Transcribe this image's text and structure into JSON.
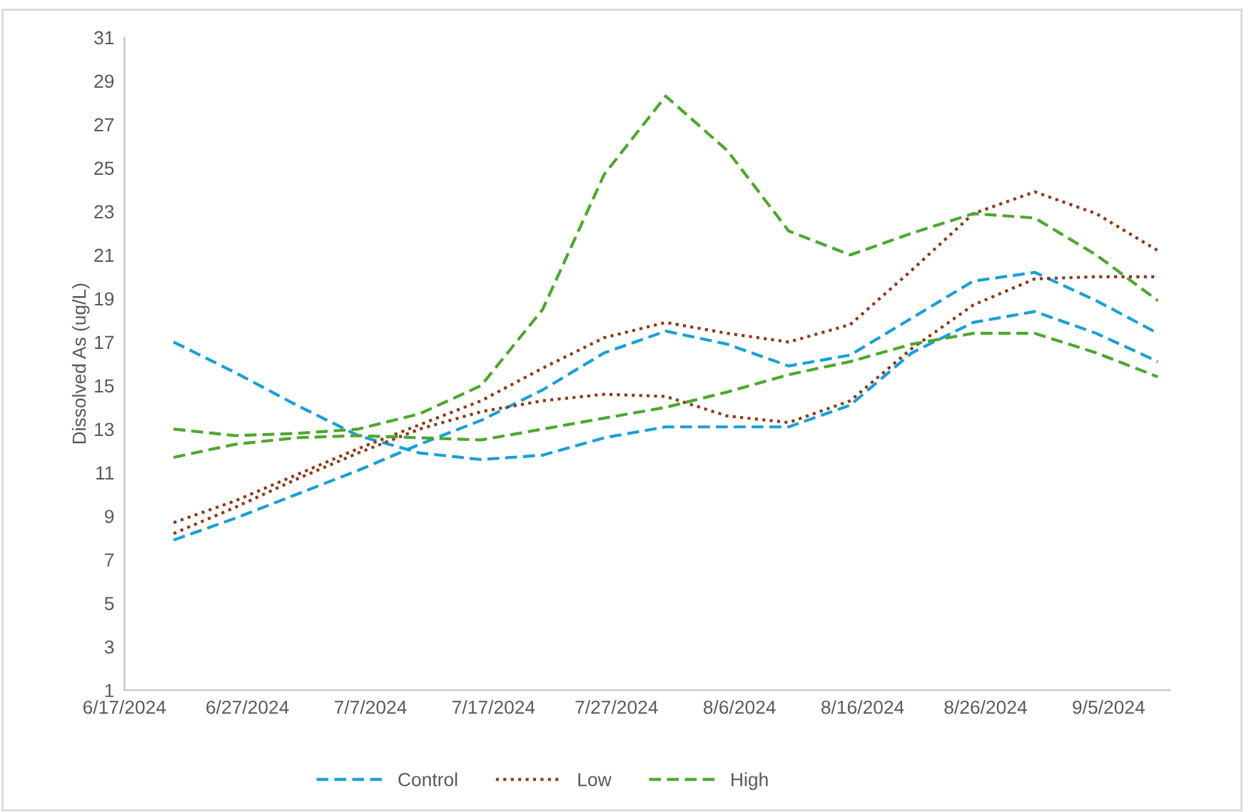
{
  "chart_data": {
    "type": "line",
    "ylabel": "Dissolved As (ug/L)",
    "x": [
      "2024-06-21",
      "2024-06-26",
      "2024-07-01",
      "2024-07-06",
      "2024-07-11",
      "2024-07-16",
      "2024-07-21",
      "2024-07-26",
      "2024-07-31",
      "2024-08-05",
      "2024-08-10",
      "2024-08-15",
      "2024-08-20",
      "2024-08-25",
      "2024-08-30",
      "2024-09-04",
      "2024-09-09"
    ],
    "series": [
      {
        "name": "Control",
        "color": "#1a9fd8",
        "line_style": "dashed",
        "values": [
          7.9,
          8.9,
          10.0,
          11.1,
          12.3,
          13.4,
          14.8,
          16.5,
          17.5,
          16.9,
          15.9,
          16.4,
          18.1,
          19.8,
          20.2,
          18.9,
          17.4
        ]
      },
      {
        "color": "#1a9fd8",
        "line_style": "dashed",
        "values": [
          17.0,
          15.6,
          14.1,
          12.7,
          11.9,
          11.6,
          11.8,
          12.6,
          13.1,
          13.1,
          13.1,
          14.1,
          16.5,
          17.9,
          18.4,
          17.4,
          16.1
        ]
      },
      {
        "name": "Low",
        "color": "#8b3a1a",
        "line_style": "dotted",
        "values": [
          8.7,
          9.7,
          10.9,
          12.1,
          13.2,
          14.3,
          15.8,
          17.2,
          17.9,
          17.4,
          17.0,
          17.8,
          20.3,
          22.9,
          23.9,
          22.9,
          21.2
        ]
      },
      {
        "color": "#8b3a1a",
        "line_style": "dotted",
        "values": [
          8.2,
          9.4,
          10.7,
          11.9,
          13.0,
          13.8,
          14.3,
          14.6,
          14.5,
          13.6,
          13.3,
          14.3,
          16.7,
          18.7,
          19.9,
          20.0,
          20.0
        ]
      },
      {
        "name": "High",
        "color": "#4ea72e",
        "line_style": "dashed",
        "values": [
          13.0,
          12.7,
          12.8,
          13.0,
          13.7,
          15.0,
          18.5,
          24.7,
          28.3,
          25.8,
          22.1,
          21.0,
          22.0,
          22.9,
          22.7,
          21.0,
          18.9
        ]
      },
      {
        "color": "#4ea72e",
        "line_style": "dashed",
        "values": [
          11.7,
          12.3,
          12.6,
          12.7,
          12.6,
          12.5,
          13.0,
          13.5,
          14.0,
          14.7,
          15.5,
          16.1,
          16.9,
          17.4,
          17.4,
          16.5,
          15.4
        ]
      }
    ],
    "xlim": [
      "2024-06-17",
      "2024-09-10"
    ],
    "xticks": [
      {
        "value": "2024-06-17",
        "label": "6/17/2024"
      },
      {
        "value": "2024-06-27",
        "label": "6/27/2024"
      },
      {
        "value": "2024-07-07",
        "label": "7/7/2024"
      },
      {
        "value": "2024-07-17",
        "label": "7/17/2024"
      },
      {
        "value": "2024-07-27",
        "label": "7/27/2024"
      },
      {
        "value": "2024-08-06",
        "label": "8/6/2024"
      },
      {
        "value": "2024-08-16",
        "label": "8/16/2024"
      },
      {
        "value": "2024-08-26",
        "label": "8/26/2024"
      },
      {
        "value": "2024-09-05",
        "label": "9/5/2024"
      }
    ],
    "ylim": [
      1,
      31
    ],
    "yticks": [
      1,
      3,
      5,
      7,
      9,
      11,
      13,
      15,
      17,
      19,
      21,
      23,
      25,
      27,
      29,
      31
    ],
    "grid": false,
    "legend": "bottom",
    "marker": "none"
  }
}
